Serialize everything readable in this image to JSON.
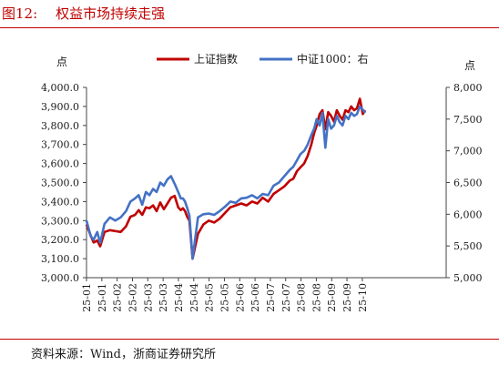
{
  "figure": {
    "number": "图12:",
    "title": "权益市场持续走强",
    "source": "资料来源：Wind，浙商证券研究所"
  },
  "colors": {
    "primary": "#c00000",
    "secondary": "#4472c4",
    "text": "#1a1a1a",
    "accent": "#c00000"
  },
  "chart_data": {
    "type": "line",
    "legend_position": "top-center",
    "grid": false,
    "y_left_unit": "点",
    "y_right_unit": "点",
    "y_left": {
      "min": 3000,
      "max": 4000,
      "ticks": [
        "3,000.0",
        "3,100.0",
        "3,200.0",
        "3,300.0",
        "3,400.0",
        "3,500.0",
        "3,600.0",
        "3,700.0",
        "3,800.0",
        "3,900.0",
        "4,000.0"
      ]
    },
    "y_right": {
      "min": 5000,
      "max": 8000,
      "ticks": [
        "5,000",
        "5,500",
        "6,000",
        "6,500",
        "7,000",
        "7,500",
        "8,000"
      ]
    },
    "x_tick_labels": [
      "25-01",
      "25-01",
      "25-02",
      "25-02",
      "25-03",
      "25-03",
      "25-04",
      "25-04",
      "25-05",
      "25-05",
      "25-06",
      "25-06",
      "25-07",
      "25-07",
      "25-08",
      "25-08",
      "25-09",
      "25-09",
      "25-10"
    ],
    "x_tick_pos": [
      0,
      0.0426,
      0.0852,
      0.1278,
      0.1704,
      0.213,
      0.2556,
      0.2982,
      0.3408,
      0.3834,
      0.426,
      0.4686,
      0.5112,
      0.5538,
      0.5964,
      0.639,
      0.6816,
      0.7242,
      0.7668
    ],
    "series": [
      {
        "name": "上证指数",
        "axis": "left",
        "color": "#c00000",
        "x": [
          0,
          0.012,
          0.02,
          0.03,
          0.038,
          0.05,
          0.065,
          0.08,
          0.095,
          0.11,
          0.122,
          0.135,
          0.145,
          0.155,
          0.165,
          0.175,
          0.185,
          0.195,
          0.205,
          0.215,
          0.225,
          0.235,
          0.245,
          0.255,
          0.262,
          0.268,
          0.274,
          0.28,
          0.286,
          0.295,
          0.31,
          0.325,
          0.34,
          0.355,
          0.37,
          0.385,
          0.4,
          0.415,
          0.43,
          0.445,
          0.46,
          0.475,
          0.49,
          0.505,
          0.52,
          0.535,
          0.55,
          0.565,
          0.575,
          0.585,
          0.595,
          0.605,
          0.615,
          0.625,
          0.633,
          0.64,
          0.648,
          0.656,
          0.664,
          0.672,
          0.68,
          0.688,
          0.696,
          0.704,
          0.712,
          0.72,
          0.728,
          0.736,
          0.744,
          0.752,
          0.76,
          0.768,
          0.775
        ],
        "values": [
          3280,
          3220,
          3185,
          3195,
          3165,
          3240,
          3250,
          3245,
          3240,
          3270,
          3320,
          3330,
          3355,
          3330,
          3370,
          3365,
          3380,
          3350,
          3395,
          3360,
          3390,
          3420,
          3430,
          3370,
          3355,
          3365,
          3350,
          3320,
          3300,
          3100,
          3230,
          3280,
          3300,
          3290,
          3310,
          3340,
          3370,
          3380,
          3390,
          3380,
          3400,
          3390,
          3420,
          3400,
          3440,
          3460,
          3480,
          3510,
          3520,
          3560,
          3580,
          3600,
          3640,
          3700,
          3760,
          3800,
          3860,
          3880,
          3780,
          3870,
          3850,
          3820,
          3880,
          3850,
          3830,
          3880,
          3870,
          3900,
          3880,
          3890,
          3940,
          3860,
          3880
        ]
      },
      {
        "name": "中证1000：右",
        "axis": "right",
        "color": "#4472c4",
        "x": [
          0,
          0.012,
          0.02,
          0.03,
          0.038,
          0.05,
          0.065,
          0.08,
          0.095,
          0.11,
          0.122,
          0.135,
          0.145,
          0.155,
          0.165,
          0.175,
          0.185,
          0.195,
          0.205,
          0.215,
          0.225,
          0.235,
          0.245,
          0.255,
          0.262,
          0.268,
          0.274,
          0.28,
          0.286,
          0.295,
          0.31,
          0.325,
          0.34,
          0.355,
          0.37,
          0.385,
          0.4,
          0.415,
          0.43,
          0.445,
          0.46,
          0.475,
          0.49,
          0.505,
          0.52,
          0.535,
          0.55,
          0.565,
          0.575,
          0.585,
          0.595,
          0.605,
          0.615,
          0.625,
          0.633,
          0.64,
          0.648,
          0.656,
          0.664,
          0.672,
          0.68,
          0.688,
          0.696,
          0.704,
          0.712,
          0.72,
          0.728,
          0.736,
          0.744,
          0.752,
          0.76,
          0.768,
          0.775
        ],
        "values": [
          5900,
          5650,
          5600,
          5720,
          5550,
          5850,
          5950,
          5900,
          5950,
          6050,
          6200,
          6250,
          6300,
          6150,
          6350,
          6300,
          6400,
          6350,
          6500,
          6450,
          6550,
          6600,
          6480,
          6350,
          6250,
          6250,
          6200,
          6100,
          5980,
          5300,
          5950,
          6000,
          6010,
          5990,
          6050,
          6120,
          6200,
          6180,
          6250,
          6260,
          6300,
          6250,
          6320,
          6300,
          6450,
          6500,
          6600,
          6700,
          6750,
          6850,
          6950,
          7000,
          7100,
          7250,
          7350,
          7500,
          7400,
          7600,
          7050,
          7500,
          7350,
          7400,
          7550,
          7450,
          7400,
          7550,
          7500,
          7600,
          7550,
          7580,
          7700,
          7650,
          7600
        ]
      }
    ]
  }
}
